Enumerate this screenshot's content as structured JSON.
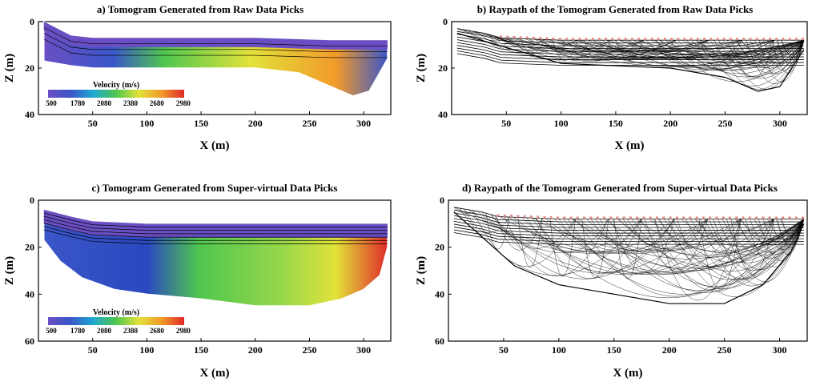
{
  "colors": {
    "colormap": [
      "#6a4fc4",
      "#3a56c8",
      "#1fa9d2",
      "#4fc64f",
      "#e2e23a",
      "#f29a2a",
      "#e02a2a"
    ],
    "ray": "#000000",
    "source_marker": "#e08a8a"
  },
  "chart_data": [
    {
      "id": "a",
      "type": "heatmap",
      "title": "a) Tomogram Generated from Raw Data Picks",
      "xlabel": "X (m)",
      "ylabel": "Z (m)",
      "xticks": [
        50,
        100,
        150,
        200,
        250,
        300
      ],
      "yticks": [
        0,
        20,
        40
      ],
      "xlim": [
        0,
        325
      ],
      "ylim": [
        0,
        40
      ],
      "surface": [
        [
          5,
          0
        ],
        [
          30,
          6
        ],
        [
          50,
          7
        ],
        [
          100,
          7
        ],
        [
          200,
          7
        ],
        [
          270,
          8
        ],
        [
          322,
          8
        ]
      ],
      "bottom": [
        [
          5,
          17
        ],
        [
          30,
          19
        ],
        [
          50,
          20
        ],
        [
          100,
          20
        ],
        [
          200,
          20
        ],
        [
          240,
          22
        ],
        [
          270,
          28
        ],
        [
          290,
          32
        ],
        [
          305,
          30
        ],
        [
          322,
          16
        ]
      ],
      "colorbar": {
        "title": "Velocity (m/s)",
        "labels": [
          "500",
          "1780",
          "2080",
          "2380",
          "2680",
          "2980"
        ]
      }
    },
    {
      "id": "b",
      "type": "line",
      "title": "b) Raypath of the Tomogram Generated from Raw Data Picks",
      "xlabel": "X (m)",
      "ylabel": "Z (m)",
      "xticks": [
        50,
        100,
        150,
        200,
        250,
        300
      ],
      "yticks": [
        0,
        20,
        40
      ],
      "xlim": [
        0,
        325
      ],
      "ylim": [
        0,
        40
      ],
      "surface": [
        [
          5,
          3
        ],
        [
          30,
          5
        ],
        [
          45,
          7
        ],
        [
          100,
          8
        ],
        [
          200,
          8
        ],
        [
          322,
          8
        ]
      ],
      "max_depth": [
        [
          5,
          5
        ],
        [
          100,
          18
        ],
        [
          200,
          20
        ],
        [
          250,
          24
        ],
        [
          280,
          30
        ],
        [
          300,
          28
        ],
        [
          322,
          12
        ]
      ]
    },
    {
      "id": "c",
      "type": "heatmap",
      "title": "c) Tomogram Generated from Super-virtual Data Picks",
      "xlabel": "X (m)",
      "ylabel": "Z (m)",
      "xticks": [
        50,
        100,
        150,
        200,
        250,
        300
      ],
      "yticks": [
        0,
        20,
        40,
        60
      ],
      "xlim": [
        0,
        325
      ],
      "ylim": [
        0,
        60
      ],
      "surface": [
        [
          5,
          4
        ],
        [
          30,
          7
        ],
        [
          50,
          9
        ],
        [
          100,
          10
        ],
        [
          200,
          10
        ],
        [
          270,
          10
        ],
        [
          322,
          10
        ]
      ],
      "bottom": [
        [
          5,
          17
        ],
        [
          20,
          26
        ],
        [
          40,
          33
        ],
        [
          70,
          38
        ],
        [
          100,
          40
        ],
        [
          150,
          42
        ],
        [
          200,
          45
        ],
        [
          250,
          45
        ],
        [
          280,
          42
        ],
        [
          300,
          38
        ],
        [
          315,
          32
        ],
        [
          322,
          20
        ]
      ],
      "colorbar": {
        "title": "Velocity (m/s)",
        "labels": [
          "500",
          "1780",
          "2080",
          "2380",
          "2680",
          "2980"
        ]
      }
    },
    {
      "id": "d",
      "type": "line",
      "title": "d) Raypath of the Tomogram Generated from Super-virtual Data Picks",
      "xlabel": "X (m)",
      "ylabel": "Z (m)",
      "xticks": [
        50,
        100,
        150,
        200,
        250,
        300
      ],
      "yticks": [
        0,
        20,
        40,
        60
      ],
      "xlim": [
        0,
        325
      ],
      "ylim": [
        0,
        60
      ],
      "surface": [
        [
          5,
          3
        ],
        [
          30,
          5
        ],
        [
          45,
          7
        ],
        [
          100,
          8
        ],
        [
          200,
          8
        ],
        [
          322,
          8
        ]
      ],
      "max_depth": [
        [
          5,
          5
        ],
        [
          60,
          28
        ],
        [
          100,
          36
        ],
        [
          150,
          40
        ],
        [
          200,
          44
        ],
        [
          250,
          44
        ],
        [
          285,
          36
        ],
        [
          310,
          22
        ],
        [
          322,
          10
        ]
      ]
    }
  ]
}
